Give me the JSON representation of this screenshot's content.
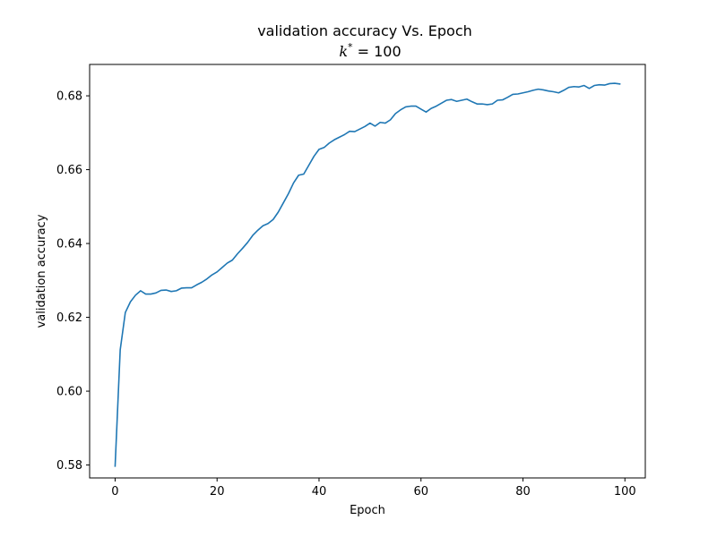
{
  "chart_data": {
    "type": "line",
    "title": "validation accuracy Vs. Epoch",
    "subtitle": {
      "variable": "k",
      "superscript": "*",
      "relation": " = ",
      "value": "100"
    },
    "xlabel": "Epoch",
    "ylabel": "validation accuracy",
    "xlim": [
      -5,
      104
    ],
    "ylim": [
      0.5765,
      0.6885
    ],
    "xticks": [
      0,
      20,
      40,
      60,
      80,
      100
    ],
    "xtick_labels": [
      "0",
      "20",
      "40",
      "60",
      "80",
      "100"
    ],
    "yticks": [
      0.58,
      0.6,
      0.62,
      0.64,
      0.66,
      0.68
    ],
    "ytick_labels": [
      "0.58",
      "0.60",
      "0.62",
      "0.64",
      "0.66",
      "0.68"
    ],
    "grid": false,
    "legend": false,
    "series": [
      {
        "color": "#1f77b4",
        "x": [
          0,
          1,
          2,
          3,
          4,
          5,
          6,
          7,
          8,
          9,
          10,
          11,
          12,
          13,
          14,
          15,
          16,
          17,
          18,
          19,
          20,
          21,
          22,
          23,
          24,
          25,
          26,
          27,
          28,
          29,
          30,
          31,
          32,
          33,
          34,
          35,
          36,
          37,
          38,
          39,
          40,
          41,
          42,
          43,
          44,
          45,
          46,
          47,
          48,
          49,
          50,
          51,
          52,
          53,
          54,
          55,
          56,
          57,
          58,
          59,
          60,
          61,
          62,
          63,
          64,
          65,
          66,
          67,
          68,
          69,
          70,
          71,
          72,
          73,
          74,
          75,
          76,
          77,
          78,
          79,
          80,
          81,
          82,
          83,
          84,
          85,
          86,
          87,
          88,
          89,
          90,
          91,
          92,
          93,
          94,
          95,
          96,
          97,
          98,
          99
        ],
        "y": [
          0.5797,
          0.6112,
          0.6213,
          0.6242,
          0.626,
          0.6272,
          0.6263,
          0.6263,
          0.6266,
          0.6273,
          0.6274,
          0.627,
          0.6272,
          0.6279,
          0.628,
          0.628,
          0.6288,
          0.6295,
          0.6304,
          0.6315,
          0.6323,
          0.6335,
          0.6347,
          0.6355,
          0.6372,
          0.6387,
          0.6403,
          0.6422,
          0.6436,
          0.6448,
          0.6454,
          0.6465,
          0.6485,
          0.651,
          0.6535,
          0.6564,
          0.6585,
          0.6588,
          0.6612,
          0.6636,
          0.6655,
          0.666,
          0.6672,
          0.6681,
          0.6688,
          0.6695,
          0.6704,
          0.6703,
          0.671,
          0.6717,
          0.6726,
          0.6718,
          0.6728,
          0.6726,
          0.6735,
          0.6752,
          0.6762,
          0.677,
          0.6772,
          0.6772,
          0.6764,
          0.6756,
          0.6766,
          0.6772,
          0.678,
          0.6788,
          0.679,
          0.6785,
          0.6788,
          0.6791,
          0.6784,
          0.6778,
          0.6778,
          0.6776,
          0.6778,
          0.6788,
          0.6789,
          0.6796,
          0.6804,
          0.6805,
          0.6808,
          0.6811,
          0.6815,
          0.6818,
          0.6816,
          0.6813,
          0.6811,
          0.6808,
          0.6815,
          0.6823,
          0.6825,
          0.6824,
          0.6828,
          0.682,
          0.6828,
          0.683,
          0.6829,
          0.6833,
          0.6834,
          0.6832
        ]
      }
    ]
  }
}
